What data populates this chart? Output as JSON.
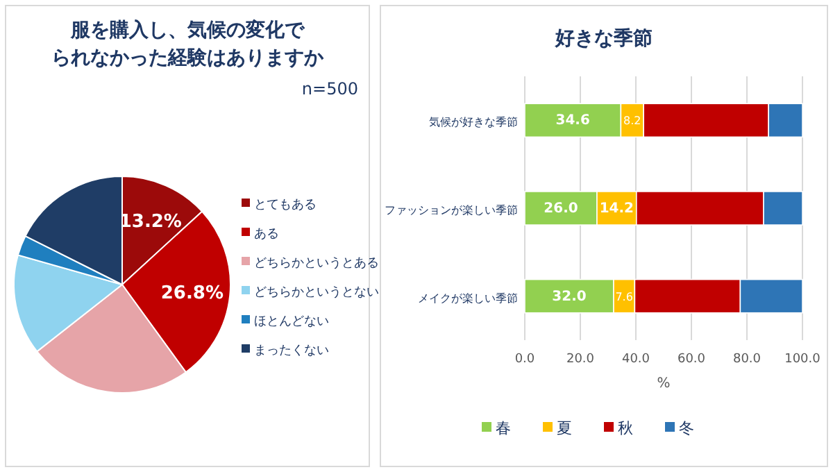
{
  "chart_data": [
    {
      "type": "pie",
      "title": "服を購入し、気候の変化でられなかった経験はありますか",
      "subtitle": "n=500",
      "categories": [
        "とてもある",
        "ある",
        "どちらかというとある",
        "どちらかというとない",
        "ほとんどない",
        "まったくない"
      ],
      "values": [
        13.2,
        26.8,
        24.4,
        15.0,
        3.0,
        17.6
      ],
      "value_labels": [
        "13.2%",
        "26.8%",
        null,
        null,
        null,
        null
      ],
      "colors": [
        "#9c0a0a",
        "#c00000",
        "#e6a4a8",
        "#8fd3ef",
        "#1f7fbf",
        "#1f3d66"
      ],
      "legend": "right"
    },
    {
      "type": "bar",
      "orientation": "horizontal",
      "stacked": true,
      "title": "好きな季節",
      "xlabel": "%",
      "categories": [
        "気候が好きな季節",
        "ファッションが楽しい季節",
        "メイクが楽しい季節"
      ],
      "series": [
        {
          "name": "春",
          "color": "#92d050",
          "values": [
            34.6,
            26.0,
            32.0
          ],
          "value_labels": [
            "34.6",
            "26.0",
            "32.0"
          ]
        },
        {
          "name": "夏",
          "color": "#ffc000",
          "values": [
            8.2,
            14.2,
            7.6
          ],
          "value_labels": [
            "8.2",
            "14.2",
            "7.6"
          ]
        },
        {
          "name": "秋",
          "color": "#c00000",
          "values": [
            45.0,
            45.8,
            38.0
          ]
        },
        {
          "name": "冬",
          "color": "#2e75b6",
          "values": [
            12.2,
            14.0,
            22.4
          ]
        }
      ],
      "xlim": [
        0,
        100
      ],
      "xticks": [
        {
          "value": 0,
          "label": "0.0"
        },
        {
          "value": 20,
          "label": "20.0"
        },
        {
          "value": 40,
          "label": "40.0"
        },
        {
          "value": 60,
          "label": "60.0"
        },
        {
          "value": 80,
          "label": "80.0"
        },
        {
          "value": 100,
          "label": "100.0"
        }
      ],
      "grid": "x",
      "legend": "bottom"
    }
  ]
}
